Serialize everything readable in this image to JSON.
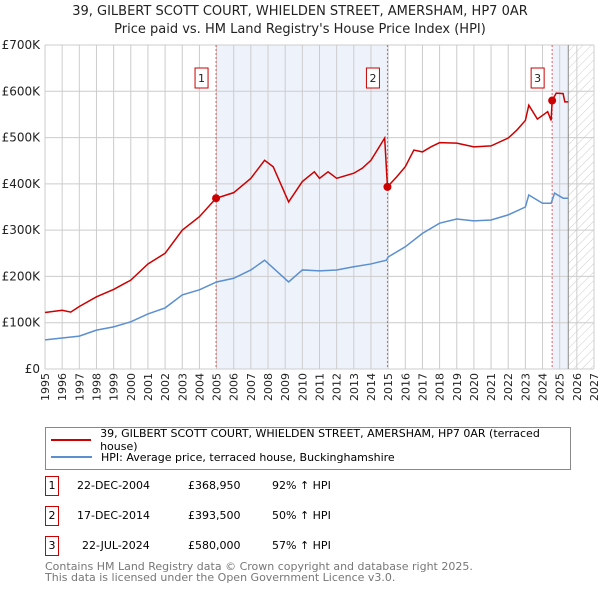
{
  "title": "39, GILBERT SCOTT COURT, WHIELDEN STREET, AMERSHAM, HP7 0AR",
  "subtitle": "Price paid vs. HM Land Registry's House Price Index (HPI)",
  "colors": {
    "property": "#cc0000",
    "hpi": "#5b8fd0",
    "shade": "#eef3fb"
  },
  "chart_data": {
    "type": "line",
    "xlim": [
      1995,
      2027
    ],
    "ylim": [
      0,
      700000
    ],
    "yticks": [
      {
        "v": 0,
        "label": "£0"
      },
      {
        "v": 100000,
        "label": "£100K"
      },
      {
        "v": 200000,
        "label": "£200K"
      },
      {
        "v": 300000,
        "label": "£300K"
      },
      {
        "v": 400000,
        "label": "£400K"
      },
      {
        "v": 500000,
        "label": "£500K"
      },
      {
        "v": 600000,
        "label": "£600K"
      },
      {
        "v": 700000,
        "label": "£700K"
      }
    ],
    "xticks": [
      "1995",
      "1996",
      "1997",
      "1998",
      "1999",
      "2000",
      "2001",
      "2002",
      "2003",
      "2004",
      "2005",
      "2006",
      "2007",
      "2008",
      "2009",
      "2010",
      "2011",
      "2012",
      "2013",
      "2014",
      "2015",
      "2016",
      "2017",
      "2018",
      "2019",
      "2020",
      "2021",
      "2022",
      "2023",
      "2024",
      "2025",
      "2026",
      "2027"
    ],
    "series": [
      {
        "name": "39, GILBERT SCOTT COURT, WHIELDEN STREET, AMERSHAM, HP7 0AR (terraced house)",
        "color": "#cc0000",
        "x": [
          1995,
          1996,
          1996.5,
          1997,
          1998,
          1999,
          2000,
          2001,
          2002,
          2003,
          2004,
          2004.97,
          2006,
          2007,
          2007.8,
          2008.3,
          2009.2,
          2010,
          2010.7,
          2011,
          2011.5,
          2012,
          2013,
          2013.5,
          2014,
          2014.8,
          2014.96,
          2015.5,
          2016,
          2016.5,
          2017,
          2017.5,
          2018,
          2019,
          2019.5,
          2020,
          2021,
          2022,
          2022.5,
          2023,
          2023.2,
          2023.7,
          2024.3,
          2024.5,
          2024.56,
          2024.8,
          2025.2,
          2025.3,
          2025.5
        ],
        "y": [
          122000,
          127000,
          123000,
          135000,
          156000,
          172000,
          192000,
          227000,
          250000,
          300000,
          329000,
          368950,
          381000,
          412000,
          451000,
          437000,
          361000,
          405000,
          426000,
          412000,
          426000,
          412000,
          423000,
          434000,
          451000,
          499000,
          393500,
          415000,
          437000,
          473000,
          469000,
          480000,
          489000,
          488000,
          484000,
          480000,
          482000,
          499000,
          516000,
          537000,
          570000,
          540000,
          556000,
          537000,
          580000,
          596000,
          595000,
          577000,
          577000
        ]
      },
      {
        "name": "HPI: Average price, terraced house, Buckinghamshire",
        "color": "#5b8fd0",
        "x": [
          1995,
          1996,
          1997,
          1998,
          1999,
          2000,
          2001,
          2002,
          2003,
          2004,
          2005,
          2006,
          2007,
          2007.8,
          2009.2,
          2010,
          2011,
          2012,
          2013,
          2014,
          2014.9,
          2015,
          2016,
          2017,
          2018,
          2019,
          2020,
          2021,
          2022,
          2023,
          2023.2,
          2024,
          2024.5,
          2024.7,
          2025.2,
          2025.5
        ],
        "y": [
          63000,
          67000,
          71000,
          84000,
          91000,
          102000,
          119000,
          132000,
          160000,
          171000,
          188000,
          196000,
          214000,
          235000,
          188000,
          214000,
          212000,
          214000,
          221000,
          227000,
          235000,
          242000,
          264000,
          293000,
          315000,
          324000,
          320000,
          322000,
          333000,
          350000,
          376000,
          358000,
          358000,
          380000,
          369000,
          369000
        ]
      }
    ],
    "sales": [
      {
        "n": "1",
        "x": 2004.97,
        "y": 368950
      },
      {
        "n": "2",
        "x": 2014.96,
        "y": 393500
      },
      {
        "n": "3",
        "x": 2024.56,
        "y": 580000
      }
    ],
    "data_end": 2025.5
  },
  "legend": {
    "property": "39, GILBERT SCOTT COURT, WHIELDEN STREET, AMERSHAM, HP7 0AR (terraced house)",
    "hpi": "HPI: Average price, terraced house, Buckinghamshire"
  },
  "transactions": [
    {
      "n": "1",
      "date": "22-DEC-2004",
      "price": "£368,950",
      "hpi": "92% ↑ HPI"
    },
    {
      "n": "2",
      "date": "17-DEC-2014",
      "price": "£393,500",
      "hpi": "50% ↑ HPI"
    },
    {
      "n": "3",
      "date": "22-JUL-2024",
      "price": "£580,000",
      "hpi": "57% ↑ HPI"
    }
  ],
  "footer": {
    "line1": "Contains HM Land Registry data © Crown copyright and database right 2025.",
    "line2": "This data is licensed under the Open Government Licence v3.0."
  }
}
